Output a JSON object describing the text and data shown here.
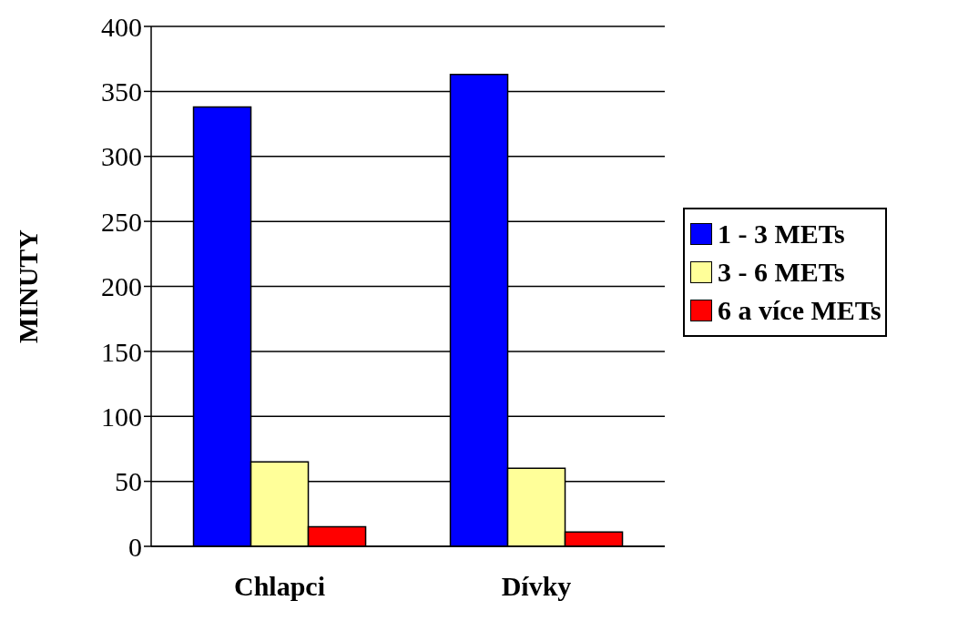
{
  "chart_data": {
    "type": "bar",
    "ylabel": "MINUTY",
    "categories": [
      "Chlapci",
      "Dívky"
    ],
    "series": [
      {
        "name": "1 - 3 METs",
        "color": "#0000ff",
        "values": [
          338,
          363
        ]
      },
      {
        "name": "3 - 6 METs",
        "color": "#ffff99",
        "values": [
          65,
          60
        ]
      },
      {
        "name": "6 a více METs",
        "color": "#ff0000",
        "values": [
          15,
          11
        ]
      }
    ],
    "ylim": [
      0,
      400
    ],
    "yticks": [
      0,
      50,
      100,
      150,
      200,
      250,
      300,
      350,
      400
    ],
    "grid": "y",
    "legend": "right"
  }
}
